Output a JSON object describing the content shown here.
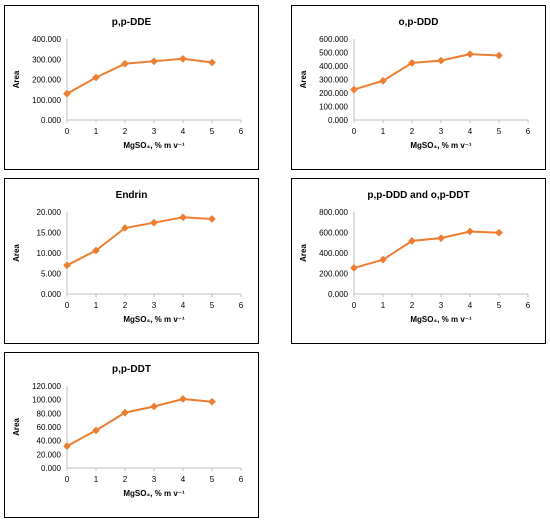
{
  "colors": {
    "line": "#ED7D31",
    "axis": "#BFBFBF",
    "text": "#000000"
  },
  "chart_data": [
    {
      "type": "line",
      "title": "p,p-DDE",
      "xlabel": "MgSO₄, % m v⁻¹",
      "ylabel": "Area",
      "x_ticks": [
        "0",
        "1",
        "2",
        "3",
        "4",
        "5",
        "6"
      ],
      "y_ticks": [
        "0.000",
        "100.000",
        "200.000",
        "300.000",
        "400.000"
      ],
      "xlim": [
        0,
        6
      ],
      "ylim": [
        0,
        400
      ],
      "grid": false,
      "legend": "none",
      "x": [
        0,
        1,
        2,
        3,
        4,
        5
      ],
      "values": [
        130,
        210,
        278,
        290,
        302,
        284
      ]
    },
    {
      "type": "line",
      "title": "o,p-DDD",
      "xlabel": "MgSO₄, % m v⁻¹",
      "ylabel": "Area",
      "x_ticks": [
        "0",
        "1",
        "2",
        "3",
        "4",
        "5",
        "6"
      ],
      "y_ticks": [
        "0.000",
        "100.000",
        "200.000",
        "300.000",
        "400.000",
        "500.000",
        "600.000"
      ],
      "xlim": [
        0,
        6
      ],
      "ylim": [
        0,
        600
      ],
      "grid": false,
      "legend": "none",
      "x": [
        0,
        1,
        2,
        3,
        4,
        5
      ],
      "values": [
        225,
        290,
        423,
        440,
        488,
        478
      ]
    },
    {
      "type": "line",
      "title": "Endrin",
      "xlabel": "MgSO₄, % m v⁻¹",
      "ylabel": "Area",
      "x_ticks": [
        "0",
        "1",
        "2",
        "3",
        "4",
        "5",
        "6"
      ],
      "y_ticks": [
        "0.000",
        "5.000",
        "10.000",
        "15.000",
        "20.000"
      ],
      "xlim": [
        0,
        6
      ],
      "ylim": [
        0,
        20
      ],
      "grid": false,
      "legend": "none",
      "x": [
        0,
        1,
        2,
        3,
        4,
        5
      ],
      "values": [
        7.0,
        10.6,
        16.1,
        17.4,
        18.7,
        18.3
      ]
    },
    {
      "type": "line",
      "title": "p,p-DDD and o,p-DDT",
      "xlabel": "MgSO₄, % m v⁻¹",
      "ylabel": "Area",
      "x_ticks": [
        "0",
        "1",
        "2",
        "3",
        "4",
        "5",
        "6"
      ],
      "y_ticks": [
        "0.000",
        "200.000",
        "400.000",
        "600.000",
        "800.000"
      ],
      "xlim": [
        0,
        6
      ],
      "ylim": [
        0,
        800
      ],
      "grid": false,
      "legend": "none",
      "x": [
        0,
        1,
        2,
        3,
        4,
        5
      ],
      "values": [
        255,
        335,
        518,
        545,
        610,
        598
      ]
    },
    {
      "type": "line",
      "title": "p,p-DDT",
      "xlabel": "MgSO₄, % m v⁻¹",
      "ylabel": "Area",
      "x_ticks": [
        "0",
        "1",
        "2",
        "3",
        "4",
        "5",
        "6"
      ],
      "y_ticks": [
        "0.000",
        "20.000",
        "40.000",
        "60.000",
        "80.000",
        "100.000",
        "120.000"
      ],
      "xlim": [
        0,
        6
      ],
      "ylim": [
        0,
        120
      ],
      "grid": false,
      "legend": "none",
      "x": [
        0,
        1,
        2,
        3,
        4,
        5
      ],
      "values": [
        32,
        55,
        81,
        90,
        101,
        97
      ]
    }
  ]
}
